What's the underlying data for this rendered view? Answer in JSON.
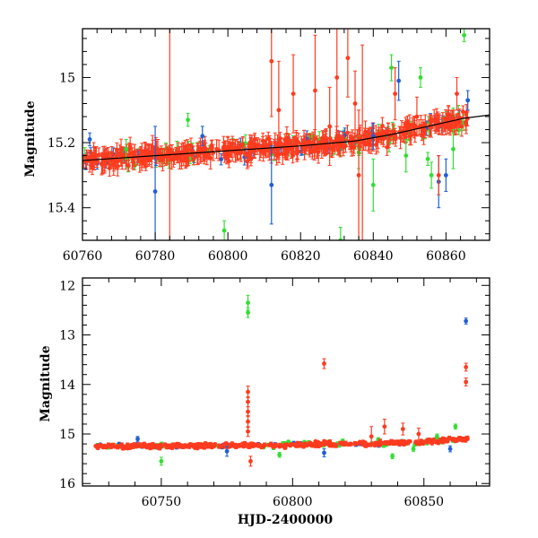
{
  "chart_data": [
    {
      "type": "scatter",
      "panel": "top",
      "title": "",
      "xlabel": "",
      "ylabel": "Magnitude",
      "xlim": [
        60760,
        60872
      ],
      "ylim": [
        15.5,
        14.85
      ],
      "y_inverted": true,
      "xticks": [
        60760,
        60780,
        60800,
        60820,
        60840,
        60860
      ],
      "yticks": [
        15,
        15.2,
        15.4
      ],
      "ytick_labels": [
        "15",
        "15.2",
        "15.4"
      ],
      "model_curve": {
        "color": "#000000",
        "points": [
          [
            60760,
            15.255
          ],
          [
            60780,
            15.24
          ],
          [
            60800,
            15.225
          ],
          [
            60820,
            15.21
          ],
          [
            60835,
            15.195
          ],
          [
            60845,
            15.175
          ],
          [
            60855,
            15.15
          ],
          [
            60865,
            15.125
          ],
          [
            60872,
            15.115
          ]
        ]
      },
      "trend": [
        [
          60760,
          15.255
        ],
        [
          60780,
          15.24
        ],
        [
          60800,
          15.225
        ],
        [
          60820,
          15.21
        ],
        [
          60835,
          15.195
        ],
        [
          60845,
          15.175
        ],
        [
          60855,
          15.15
        ],
        [
          60865,
          15.125
        ],
        [
          60872,
          15.115
        ]
      ],
      "dense_series": [
        {
          "color": "#ff3b1f",
          "x_start": 60760,
          "x_end": 60866,
          "n": 460,
          "scatter": 0.018,
          "err": 0.025
        },
        {
          "color": "#33dd33",
          "x_start": 60760,
          "x_end": 60866,
          "n": 90,
          "scatter": 0.02,
          "err": 0.02
        },
        {
          "color": "#1f5fd6",
          "x_start": 60760,
          "x_end": 60866,
          "n": 60,
          "scatter": 0.015,
          "err": 0.018
        }
      ],
      "outliers": [
        {
          "color": "#1f5fd6",
          "x": 60762,
          "y": 15.19,
          "err": 0.02
        },
        {
          "color": "#1f5fd6",
          "x": 60780,
          "y": 15.35,
          "err": 0.2
        },
        {
          "color": "#1f5fd6",
          "x": 60793,
          "y": 15.18,
          "err": 0.03
        },
        {
          "color": "#1f5fd6",
          "x": 60812,
          "y": 15.33,
          "err": 0.12
        },
        {
          "color": "#1f5fd6",
          "x": 60840,
          "y": 15.18,
          "err": 0.04
        },
        {
          "color": "#1f5fd6",
          "x": 60847,
          "y": 15.01,
          "err": 0.06
        },
        {
          "color": "#1f5fd6",
          "x": 60858,
          "y": 15.32,
          "err": 0.08
        },
        {
          "color": "#1f5fd6",
          "x": 60860,
          "y": 15.3,
          "err": 0.05
        },
        {
          "color": "#1f5fd6",
          "x": 60866,
          "y": 15.07,
          "err": 0.03
        },
        {
          "color": "#33dd33",
          "x": 60772,
          "y": 15.22,
          "err": 0.03
        },
        {
          "color": "#33dd33",
          "x": 60789,
          "y": 15.13,
          "err": 0.02
        },
        {
          "color": "#33dd33",
          "x": 60799,
          "y": 15.47,
          "err": 0.03
        },
        {
          "color": "#33dd33",
          "x": 60831,
          "y": 15.5,
          "err": 0.04
        },
        {
          "color": "#33dd33",
          "x": 60836,
          "y": 15.23,
          "err": 0.05
        },
        {
          "color": "#33dd33",
          "x": 60840,
          "y": 15.33,
          "err": 0.08
        },
        {
          "color": "#33dd33",
          "x": 60845,
          "y": 14.97,
          "err": 0.04
        },
        {
          "color": "#33dd33",
          "x": 60849,
          "y": 15.24,
          "err": 0.05
        },
        {
          "color": "#33dd33",
          "x": 60853,
          "y": 15.0,
          "err": 0.03
        },
        {
          "color": "#33dd33",
          "x": 60855,
          "y": 15.25,
          "err": 0.02
        },
        {
          "color": "#33dd33",
          "x": 60856,
          "y": 15.3,
          "err": 0.04
        },
        {
          "color": "#33dd33",
          "x": 60862,
          "y": 15.22,
          "err": 0.06
        },
        {
          "color": "#33dd33",
          "x": 60865,
          "y": 14.87,
          "err": 0.02
        },
        {
          "color": "#ff3b1f",
          "x": 60784,
          "y": 15.22,
          "err": 0.45
        },
        {
          "color": "#ff3b1f",
          "x": 60812,
          "y": 14.95,
          "err": 0.17
        },
        {
          "color": "#ff3b1f",
          "x": 60814,
          "y": 15.1,
          "err": 0.15
        },
        {
          "color": "#ff3b1f",
          "x": 60818,
          "y": 15.05,
          "err": 0.12
        },
        {
          "color": "#ff3b1f",
          "x": 60824,
          "y": 15.04,
          "err": 0.17
        },
        {
          "color": "#ff3b1f",
          "x": 60828,
          "y": 15.15,
          "err": 0.12
        },
        {
          "color": "#ff3b1f",
          "x": 60830,
          "y": 15.0,
          "err": 0.15
        },
        {
          "color": "#ff3b1f",
          "x": 60833,
          "y": 14.94,
          "err": 0.12
        },
        {
          "color": "#ff3b1f",
          "x": 60835,
          "y": 15.08,
          "err": 0.1
        },
        {
          "color": "#ff3b1f",
          "x": 60836,
          "y": 15.3,
          "err": 0.2
        },
        {
          "color": "#ff3b1f",
          "x": 60837,
          "y": 15.2,
          "err": 0.3
        },
        {
          "color": "#ff3b1f",
          "x": 60846,
          "y": 15.05,
          "err": 0.08
        },
        {
          "color": "#ff3b1f",
          "x": 60852,
          "y": 15.12,
          "err": 0.06
        },
        {
          "color": "#ff3b1f",
          "x": 60858,
          "y": 15.3,
          "err": 0.06
        },
        {
          "color": "#ff3b1f",
          "x": 60863,
          "y": 15.05,
          "err": 0.05
        }
      ]
    },
    {
      "type": "scatter",
      "panel": "bottom",
      "title": "",
      "xlabel": "HJD-2400000",
      "ylabel": "Magnitude",
      "xlim": [
        60720,
        60875
      ],
      "ylim": [
        16.05,
        11.85
      ],
      "y_inverted": true,
      "xticks": [
        60750,
        60800,
        60850
      ],
      "yticks": [
        12,
        13,
        14,
        15,
        16
      ],
      "ytick_labels": [
        "12",
        "13",
        "14",
        "15",
        "16"
      ],
      "trend": [
        [
          60725,
          15.25
        ],
        [
          60760,
          15.24
        ],
        [
          60800,
          15.22
        ],
        [
          60830,
          15.2
        ],
        [
          60850,
          15.16
        ],
        [
          60867,
          15.1
        ]
      ],
      "dense_series": [
        {
          "color": "#ff3b1f",
          "x_start": 60725,
          "x_end": 60867,
          "n": 420,
          "scatter": 0.03,
          "err": 0.03
        },
        {
          "color": "#33dd33",
          "x_start": 60725,
          "x_end": 60867,
          "n": 70,
          "scatter": 0.04,
          "err": 0.03
        },
        {
          "color": "#1f5fd6",
          "x_start": 60725,
          "x_end": 60867,
          "n": 50,
          "scatter": 0.03,
          "err": 0.03
        }
      ],
      "outliers": [
        {
          "color": "#33dd33",
          "x": 60783,
          "y": 12.35,
          "err": 0.15
        },
        {
          "color": "#33dd33",
          "x": 60783,
          "y": 12.55,
          "err": 0.1
        },
        {
          "color": "#ff3b1f",
          "x": 60783,
          "y": 14.15,
          "err": 0.12
        },
        {
          "color": "#ff3b1f",
          "x": 60783,
          "y": 14.35,
          "err": 0.1
        },
        {
          "color": "#ff3b1f",
          "x": 60783,
          "y": 14.55,
          "err": 0.1
        },
        {
          "color": "#ff3b1f",
          "x": 60783,
          "y": 14.75,
          "err": 0.12
        },
        {
          "color": "#ff3b1f",
          "x": 60783,
          "y": 14.95,
          "err": 0.1
        },
        {
          "color": "#ff3b1f",
          "x": 60784,
          "y": 15.55,
          "err": 0.1
        },
        {
          "color": "#ff3b1f",
          "x": 60812,
          "y": 13.58,
          "err": 0.1
        },
        {
          "color": "#ff3b1f",
          "x": 60830,
          "y": 15.05,
          "err": 0.2
        },
        {
          "color": "#ff3b1f",
          "x": 60835,
          "y": 14.85,
          "err": 0.15
        },
        {
          "color": "#ff3b1f",
          "x": 60842,
          "y": 14.9,
          "err": 0.12
        },
        {
          "color": "#ff3b1f",
          "x": 60848,
          "y": 15.0,
          "err": 0.12
        },
        {
          "color": "#ff3b1f",
          "x": 60866,
          "y": 13.65,
          "err": 0.08
        },
        {
          "color": "#ff3b1f",
          "x": 60866,
          "y": 13.95,
          "err": 0.08
        },
        {
          "color": "#1f5fd6",
          "x": 60866,
          "y": 12.72,
          "err": 0.06
        },
        {
          "color": "#1f5fd6",
          "x": 60741,
          "y": 15.1,
          "err": 0.05
        },
        {
          "color": "#1f5fd6",
          "x": 60775,
          "y": 15.35,
          "err": 0.1
        },
        {
          "color": "#1f5fd6",
          "x": 60812,
          "y": 15.38,
          "err": 0.08
        },
        {
          "color": "#1f5fd6",
          "x": 60860,
          "y": 15.3,
          "err": 0.06
        },
        {
          "color": "#33dd33",
          "x": 60750,
          "y": 15.55,
          "err": 0.08
        },
        {
          "color": "#33dd33",
          "x": 60795,
          "y": 15.42,
          "err": 0.05
        },
        {
          "color": "#33dd33",
          "x": 60838,
          "y": 15.45,
          "err": 0.05
        },
        {
          "color": "#33dd33",
          "x": 60846,
          "y": 15.3,
          "err": 0.05
        },
        {
          "color": "#33dd33",
          "x": 60862,
          "y": 14.85,
          "err": 0.05
        },
        {
          "color": "#33dd33",
          "x": 60855,
          "y": 15.05,
          "err": 0.05
        }
      ]
    }
  ]
}
